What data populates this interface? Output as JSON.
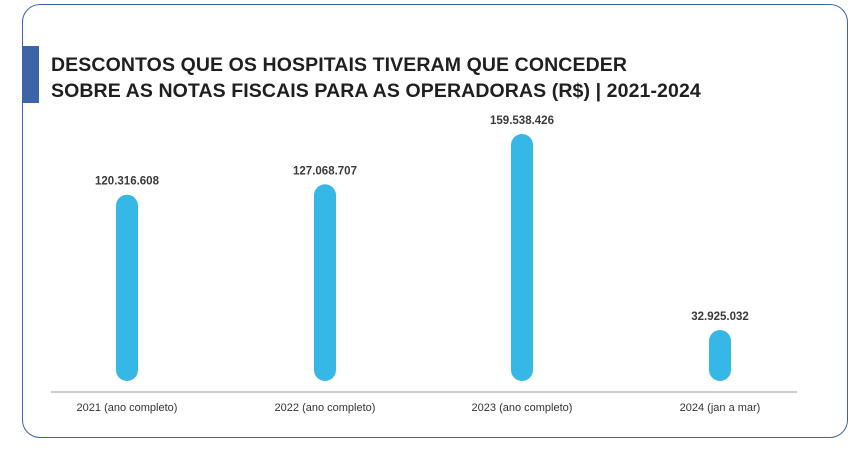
{
  "chart_data": {
    "type": "bar",
    "title_lines": [
      "DESCONTOS QUE OS HOSPITAIS TIVERAM QUE CONCEDER",
      "SOBRE AS NOTAS FISCAIS PARA AS OPERADORAS (R$) | 2021-2024"
    ],
    "categories": [
      "2021 (ano completo)",
      "2022 (ano completo)",
      "2023 (ano completo)",
      "2024 (jan a mar)"
    ],
    "values": [
      120316608,
      127068707,
      159538426,
      32925032
    ],
    "value_labels": [
      "120.316.608",
      "127.068.707",
      "159.538.426",
      "32.925.032"
    ],
    "ylim": [
      0,
      159538426
    ],
    "grid": false,
    "bar_color": "#35b8e6",
    "accent_color": "#3d63a8"
  }
}
